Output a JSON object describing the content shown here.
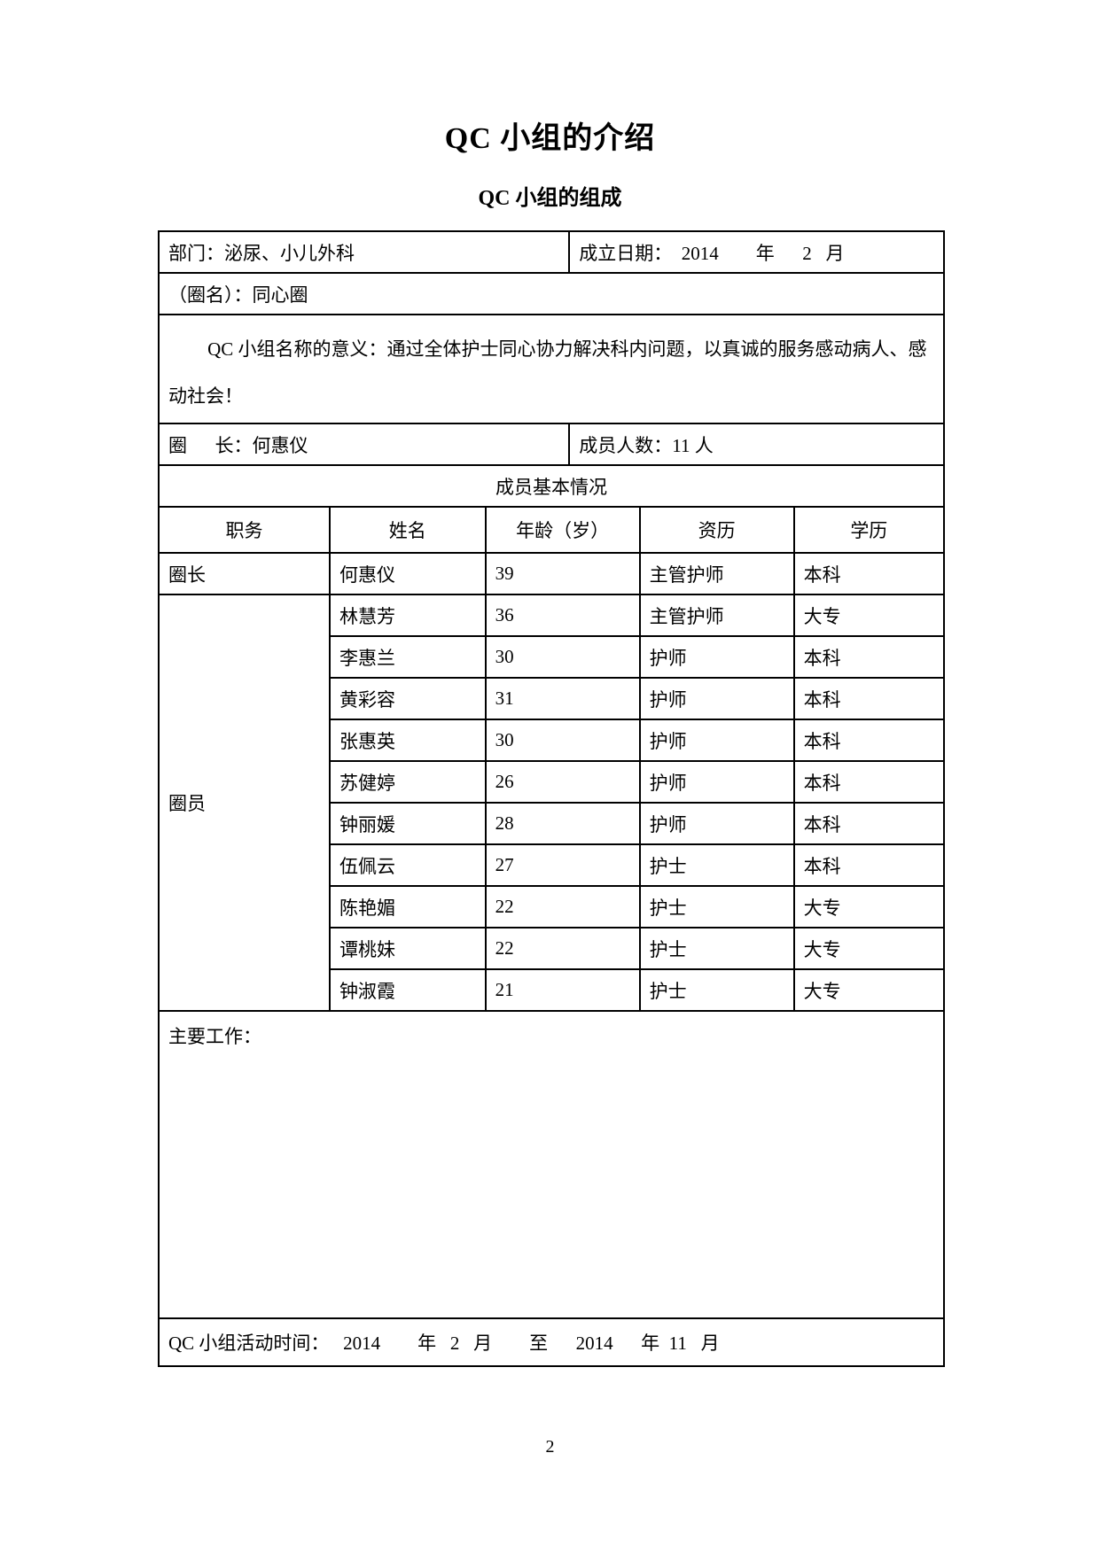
{
  "page": {
    "title": "QC 小组的介绍",
    "subtitle": "QC 小组的组成",
    "page_number": "2"
  },
  "info": {
    "department": "部门：泌尿、小儿外科",
    "founded_date": "成立日期：  2014        年      2   月",
    "circle_name": "（圈名）：同心圈",
    "meaning": "QC 小组名称的意义：通过全体护士同心协力解决科内问题，以真诚的服务感动病人、感动社会！",
    "leader": "圈      长：何惠仪",
    "member_count": "成员人数：11 人",
    "members_section_title": "成员基本情况",
    "main_work_label": "主要工作：",
    "activity_time": "QC 小组活动时间：   2014        年   2   月        至      2014      年  11   月"
  },
  "members": {
    "columns": [
      "职务",
      "姓名",
      "年龄（岁）",
      "资历",
      "学历"
    ],
    "rows": [
      {
        "role": "圈长",
        "name": "何惠仪",
        "age": "39",
        "qualification": "主管护师",
        "education": "本科"
      },
      {
        "role": "圈员",
        "name": "林慧芳",
        "age": "36",
        "qualification": "主管护师",
        "education": "大专"
      },
      {
        "name": "李惠兰",
        "age": "30",
        "qualification": "护师",
        "education": "本科"
      },
      {
        "name": "黄彩容",
        "age": "31",
        "qualification": "护师",
        "education": "本科"
      },
      {
        "name": "张惠英",
        "age": "30",
        "qualification": "护师",
        "education": "本科"
      },
      {
        "name": "苏健婷",
        "age": "26",
        "qualification": "护师",
        "education": "本科"
      },
      {
        "name": "钟丽媛",
        "age": "28",
        "qualification": "护师",
        "education": "本科"
      },
      {
        "name": "伍佩云",
        "age": "27",
        "qualification": "护士",
        "education": "本科"
      },
      {
        "name": "陈艳媚",
        "age": "22",
        "qualification": "护士",
        "education": "大专"
      },
      {
        "name": "谭桃妹",
        "age": "22",
        "qualification": "护士",
        "education": "大专"
      },
      {
        "name": "钟淑霞",
        "age": "21",
        "qualification": "护士",
        "education": "大专"
      }
    ]
  }
}
